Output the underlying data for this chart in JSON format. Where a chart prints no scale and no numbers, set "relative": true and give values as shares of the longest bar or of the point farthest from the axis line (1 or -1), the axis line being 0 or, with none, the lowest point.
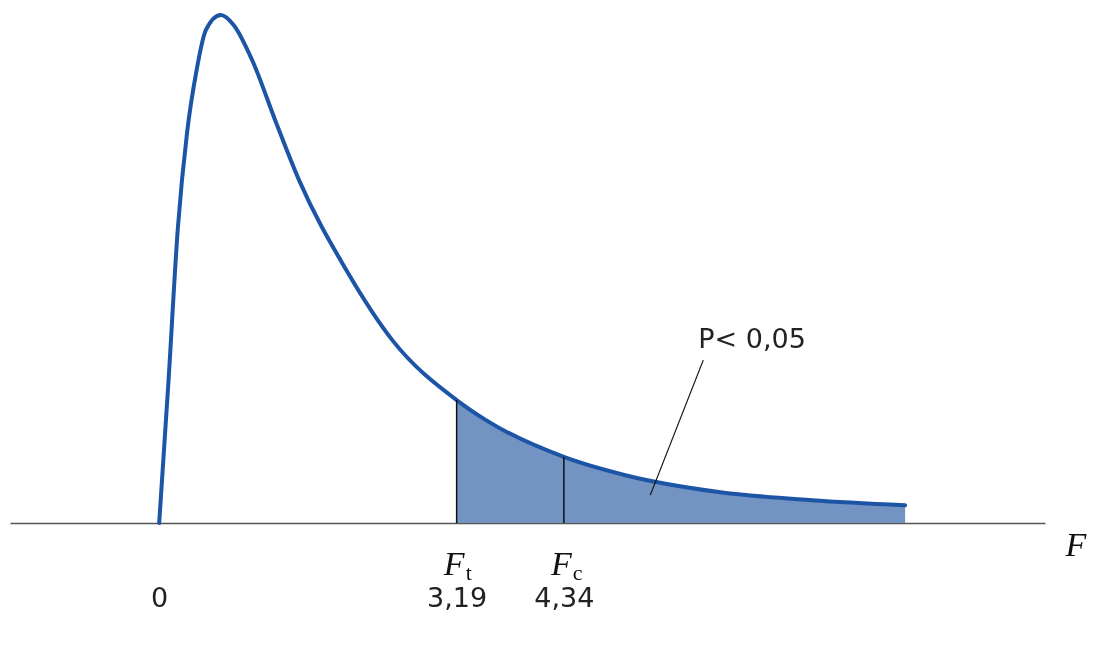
{
  "chart_data": {
    "type": "line",
    "relative": true,
    "xlabel": "F",
    "xlim": [
      -1.6,
      9.5
    ],
    "xticks": [
      {
        "value": 0,
        "label": "0"
      },
      {
        "value": 3.19,
        "label": "3,19"
      },
      {
        "value": 4.34,
        "label": "4,34"
      }
    ],
    "series": [
      {
        "type": "area",
        "color": "#7393c2",
        "x": [
          3.19,
          3.5,
          4.34,
          5,
          6,
          7,
          8
        ],
        "values": [
          0.242,
          0.203,
          0.13,
          0.094,
          0.061,
          0.045,
          0.035
        ]
      },
      {
        "color": "#1d55a6",
        "x": [
          0,
          0.1,
          0.2,
          0.3,
          0.4,
          0.5,
          0.66,
          0.8,
          1,
          1.25,
          1.5,
          2,
          2.5,
          3.19,
          3.5,
          4.34,
          5,
          6,
          7,
          8
        ],
        "values": [
          0,
          0.28,
          0.58,
          0.77,
          0.89,
          0.97,
          1,
          0.98,
          0.91,
          0.79,
          0.675,
          0.5,
          0.36,
          0.242,
          0.203,
          0.13,
          0.094,
          0.061,
          0.045,
          0.035
        ]
      }
    ],
    "ref_lines": [
      {
        "axis": "x",
        "value": 3.19,
        "label": "F$_{t}$"
      },
      {
        "axis": "x",
        "value": 4.34,
        "label": "F$_{c}$"
      }
    ],
    "annotations": [
      "P< 0,05"
    ],
    "grid": false
  }
}
